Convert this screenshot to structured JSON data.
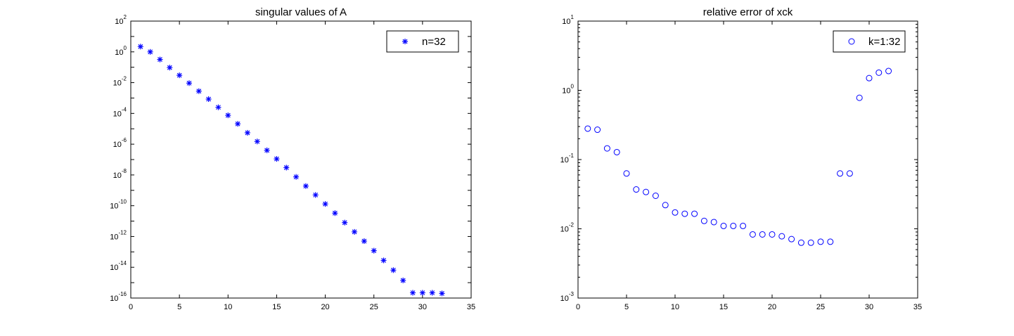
{
  "chart_data": [
    {
      "type": "scatter",
      "title": "singular values of A",
      "xlabel": "",
      "ylabel": "",
      "yscale": "log",
      "xlim": [
        0,
        35
      ],
      "ylim_exponents": [
        -16,
        2
      ],
      "x_ticks": [
        0,
        5,
        10,
        15,
        20,
        25,
        30,
        35
      ],
      "y_tick_exponents": [
        2,
        0,
        -2,
        -4,
        -6,
        -8,
        -10,
        -12,
        -14,
        -16
      ],
      "grid": false,
      "legend_position": "top-right",
      "marker": "asterisk",
      "color": "#0000ff",
      "series": [
        {
          "name": "n=32",
          "x": [
            1,
            2,
            3,
            4,
            5,
            6,
            7,
            8,
            9,
            10,
            11,
            12,
            13,
            14,
            15,
            16,
            17,
            18,
            19,
            20,
            21,
            22,
            23,
            24,
            25,
            26,
            27,
            28,
            29,
            30,
            31,
            32
          ],
          "y": [
            2.2,
            1.0,
            0.32,
            0.095,
            0.03,
            0.0093,
            0.0028,
            0.00085,
            0.00025,
            7.5e-05,
            2.1e-05,
            5.5e-06,
            1.5e-06,
            4e-07,
            1.1e-07,
            3e-08,
            7.5e-09,
            1.9e-09,
            5e-10,
            1.3e-10,
            3.3e-11,
            8e-12,
            2e-12,
            5e-13,
            1.2e-13,
            2.8e-14,
            6.5e-15,
            1.4e-15,
            2.2e-16,
            2.2e-16,
            2.2e-16,
            2e-16
          ]
        }
      ]
    },
    {
      "type": "scatter",
      "title": "relative error of xck",
      "xlabel": "",
      "ylabel": "",
      "yscale": "log",
      "xlim": [
        0,
        35
      ],
      "ylim_exponents": [
        -3,
        1
      ],
      "x_ticks": [
        0,
        5,
        10,
        15,
        20,
        25,
        30,
        35
      ],
      "y_tick_exponents": [
        1,
        0,
        -1,
        -2,
        -3
      ],
      "grid": false,
      "legend_position": "top-right",
      "marker": "circle",
      "color": "#0000ff",
      "series": [
        {
          "name": "k=1:32",
          "x": [
            1,
            2,
            3,
            4,
            5,
            6,
            7,
            8,
            9,
            10,
            11,
            12,
            13,
            14,
            15,
            16,
            17,
            18,
            19,
            20,
            21,
            22,
            23,
            24,
            25,
            26,
            27,
            28,
            29,
            30,
            31,
            32
          ],
          "y": [
            0.28,
            0.27,
            0.145,
            0.128,
            0.063,
            0.037,
            0.034,
            0.03,
            0.022,
            0.0172,
            0.0165,
            0.0165,
            0.013,
            0.0125,
            0.011,
            0.011,
            0.011,
            0.0083,
            0.0083,
            0.0083,
            0.0078,
            0.0071,
            0.0063,
            0.0063,
            0.0065,
            0.0065,
            0.063,
            0.063,
            0.78,
            1.5,
            1.8,
            1.9
          ]
        }
      ]
    }
  ]
}
